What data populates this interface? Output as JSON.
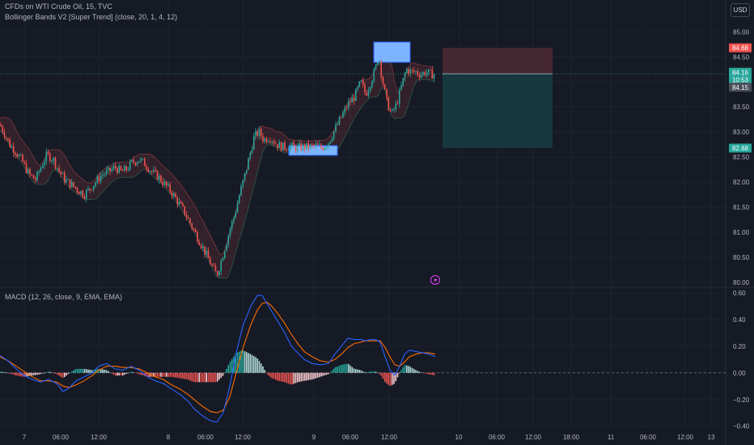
{
  "header": {
    "symbol_line": "CFDs on WTI Crude Oil, 15, TVC",
    "indicator_line": "Bollinger Bands V2 [Super Trend] (close, 20, 1, 4, 12)",
    "macd_line": "MACD (12, 26, close, 9, EMA, EMA)",
    "currency": "USD"
  },
  "colors": {
    "background": "#161a25",
    "grid": "#1f2330",
    "up_candle": "#26a69a",
    "down_candle": "#ef5350",
    "macd_line": "#2962ff",
    "signal_line": "#ff6d00",
    "hist_up": "#b2dfdb",
    "hist_up_strong": "#26a69a",
    "hist_down": "#ef5350",
    "hist_down_light": "#ffcdd2",
    "stop_zone": "#4a2a33",
    "target_zone": "#17393f",
    "highlight_box": "#7cb4ff"
  },
  "chart_data": [
    {
      "type": "candlestick",
      "title": "CFDs on WTI Crude Oil, 15, TVC",
      "ylim": [
        79.95,
        85.15
      ],
      "yticks": [
        "85.00",
        "84.50",
        "84.00",
        "83.50",
        "83.00",
        "82.50",
        "82.00",
        "81.50",
        "81.00",
        "80.50",
        "80.00"
      ],
      "xticks": [
        "7",
        "06:00",
        "12:00",
        "8",
        "06:00",
        "12:00",
        "9",
        "06:00",
        "12:00",
        "10",
        "06:00",
        "12:00",
        "18:00",
        "11",
        "06:00",
        "12:00",
        "13"
      ],
      "price_path": [
        [
          0,
          83.15
        ],
        [
          6,
          82.95
        ],
        [
          12,
          82.75
        ],
        [
          20,
          82.6
        ],
        [
          28,
          82.4
        ],
        [
          36,
          82.15
        ],
        [
          44,
          82.05
        ],
        [
          52,
          82.35
        ],
        [
          58,
          82.55
        ],
        [
          66,
          82.45
        ],
        [
          72,
          82.25
        ],
        [
          80,
          82.05
        ],
        [
          88,
          81.95
        ],
        [
          96,
          81.85
        ],
        [
          104,
          81.75
        ],
        [
          110,
          81.85
        ],
        [
          118,
          82.0
        ],
        [
          126,
          82.15
        ],
        [
          134,
          82.2
        ],
        [
          142,
          82.3
        ],
        [
          150,
          82.2
        ],
        [
          156,
          82.25
        ],
        [
          164,
          82.4
        ],
        [
          172,
          82.45
        ],
        [
          180,
          82.35
        ],
        [
          188,
          82.2
        ],
        [
          196,
          82.1
        ],
        [
          204,
          81.95
        ],
        [
          212,
          81.8
        ],
        [
          220,
          81.6
        ],
        [
          228,
          81.4
        ],
        [
          236,
          81.15
        ],
        [
          244,
          80.9
        ],
        [
          252,
          80.65
        ],
        [
          258,
          80.45
        ],
        [
          264,
          80.25
        ],
        [
          268,
          80.15
        ],
        [
          272,
          80.35
        ],
        [
          278,
          80.7
        ],
        [
          284,
          81.05
        ],
        [
          290,
          81.35
        ],
        [
          296,
          81.75
        ],
        [
          302,
          82.1
        ],
        [
          308,
          82.5
        ],
        [
          314,
          82.9
        ],
        [
          320,
          83.0
        ],
        [
          326,
          82.85
        ],
        [
          334,
          82.9
        ],
        [
          342,
          82.75
        ],
        [
          350,
          82.7
        ],
        [
          358,
          82.72
        ],
        [
          366,
          82.68
        ],
        [
          374,
          82.7
        ],
        [
          382,
          82.7
        ],
        [
          390,
          82.72
        ],
        [
          398,
          82.68
        ],
        [
          406,
          82.8
        ],
        [
          414,
          83.05
        ],
        [
          422,
          83.3
        ],
        [
          430,
          83.55
        ],
        [
          438,
          83.7
        ],
        [
          446,
          84.0
        ],
        [
          452,
          83.75
        ],
        [
          458,
          84.0
        ],
        [
          464,
          84.25
        ],
        [
          468,
          84.55
        ],
        [
          472,
          84.1
        ],
        [
          478,
          83.6
        ],
        [
          484,
          83.35
        ],
        [
          490,
          83.55
        ],
        [
          496,
          83.9
        ],
        [
          502,
          84.25
        ],
        [
          508,
          84.2
        ],
        [
          514,
          84.2
        ],
        [
          520,
          84.15
        ],
        [
          526,
          84.2
        ],
        [
          532,
          84.15
        ],
        [
          538,
          84.16
        ]
      ],
      "price_labels": [
        {
          "name": "stop-loss",
          "value": "84.68",
          "color": "#ef5350"
        },
        {
          "name": "last-price",
          "value": "84.16",
          "color": "#26a69a"
        },
        {
          "name": "countdown",
          "value": "10:53",
          "color": "#26a69a"
        },
        {
          "name": "prev-close",
          "value": "84.15",
          "color": "#4a4e5a"
        },
        {
          "name": "take-profit",
          "value": "82.68",
          "color": "#26a69a"
        }
      ],
      "position": {
        "entry": 84.16,
        "stop": 84.68,
        "target": 82.68
      }
    },
    {
      "type": "macd",
      "title": "MACD (12, 26, close, 9, EMA, EMA)",
      "ylim": [
        -0.42,
        0.63
      ],
      "yticks": [
        "0.60",
        "0.40",
        "0.20",
        "0.00",
        "−0.20",
        "−0.40"
      ],
      "macd": [
        [
          0,
          0.13
        ],
        [
          10,
          0.09
        ],
        [
          20,
          0.03
        ],
        [
          30,
          -0.02
        ],
        [
          40,
          -0.05
        ],
        [
          50,
          -0.07
        ],
        [
          60,
          -0.05
        ],
        [
          70,
          -0.08
        ],
        [
          78,
          -0.14
        ],
        [
          86,
          -0.11
        ],
        [
          94,
          -0.06
        ],
        [
          104,
          -0.03
        ],
        [
          114,
          0.0
        ],
        [
          122,
          0.05
        ],
        [
          132,
          0.07
        ],
        [
          142,
          0.03
        ],
        [
          152,
          0.02
        ],
        [
          162,
          0.05
        ],
        [
          172,
          0.02
        ],
        [
          182,
          -0.03
        ],
        [
          192,
          -0.06
        ],
        [
          202,
          -0.08
        ],
        [
          212,
          -0.12
        ],
        [
          222,
          -0.16
        ],
        [
          232,
          -0.21
        ],
        [
          240,
          -0.27
        ],
        [
          250,
          -0.32
        ],
        [
          260,
          -0.36
        ],
        [
          268,
          -0.37
        ],
        [
          276,
          -0.3
        ],
        [
          284,
          -0.1
        ],
        [
          292,
          0.15
        ],
        [
          300,
          0.35
        ],
        [
          310,
          0.5
        ],
        [
          318,
          0.58
        ],
        [
          324,
          0.58
        ],
        [
          330,
          0.52
        ],
        [
          336,
          0.46
        ],
        [
          344,
          0.38
        ],
        [
          352,
          0.3
        ],
        [
          360,
          0.2
        ],
        [
          368,
          0.15
        ],
        [
          376,
          0.1
        ],
        [
          386,
          0.07
        ],
        [
          396,
          0.06
        ],
        [
          406,
          0.07
        ],
        [
          414,
          0.14
        ],
        [
          422,
          0.2
        ],
        [
          430,
          0.26
        ],
        [
          438,
          0.25
        ],
        [
          446,
          0.25
        ],
        [
          452,
          0.24
        ],
        [
          458,
          0.25
        ],
        [
          464,
          0.25
        ],
        [
          470,
          0.23
        ],
        [
          476,
          0.12
        ],
        [
          482,
          0.02
        ],
        [
          488,
          -0.02
        ],
        [
          494,
          0.05
        ],
        [
          500,
          0.14
        ],
        [
          506,
          0.17
        ],
        [
          514,
          0.16
        ],
        [
          522,
          0.15
        ],
        [
          530,
          0.14
        ],
        [
          538,
          0.12
        ]
      ],
      "signal": [
        [
          0,
          0.12
        ],
        [
          10,
          0.09
        ],
        [
          20,
          0.05
        ],
        [
          30,
          0.01
        ],
        [
          40,
          -0.03
        ],
        [
          50,
          -0.06
        ],
        [
          60,
          -0.06
        ],
        [
          70,
          -0.07
        ],
        [
          78,
          -0.1
        ],
        [
          86,
          -0.11
        ],
        [
          94,
          -0.09
        ],
        [
          104,
          -0.06
        ],
        [
          114,
          -0.02
        ],
        [
          122,
          0.02
        ],
        [
          132,
          0.05
        ],
        [
          142,
          0.05
        ],
        [
          152,
          0.04
        ],
        [
          162,
          0.04
        ],
        [
          172,
          0.03
        ],
        [
          182,
          0.0
        ],
        [
          192,
          -0.03
        ],
        [
          202,
          -0.05
        ],
        [
          212,
          -0.09
        ],
        [
          222,
          -0.12
        ],
        [
          232,
          -0.16
        ],
        [
          240,
          -0.2
        ],
        [
          250,
          -0.25
        ],
        [
          260,
          -0.29
        ],
        [
          268,
          -0.3
        ],
        [
          276,
          -0.28
        ],
        [
          284,
          -0.18
        ],
        [
          292,
          0.0
        ],
        [
          300,
          0.18
        ],
        [
          310,
          0.36
        ],
        [
          318,
          0.47
        ],
        [
          324,
          0.52
        ],
        [
          330,
          0.53
        ],
        [
          336,
          0.5
        ],
        [
          344,
          0.44
        ],
        [
          352,
          0.37
        ],
        [
          360,
          0.29
        ],
        [
          368,
          0.22
        ],
        [
          376,
          0.16
        ],
        [
          386,
          0.12
        ],
        [
          396,
          0.09
        ],
        [
          406,
          0.08
        ],
        [
          414,
          0.1
        ],
        [
          422,
          0.14
        ],
        [
          430,
          0.19
        ],
        [
          438,
          0.22
        ],
        [
          446,
          0.23
        ],
        [
          452,
          0.24
        ],
        [
          458,
          0.24
        ],
        [
          464,
          0.24
        ],
        [
          470,
          0.24
        ],
        [
          476,
          0.19
        ],
        [
          482,
          0.12
        ],
        [
          488,
          0.06
        ],
        [
          494,
          0.05
        ],
        [
          500,
          0.08
        ],
        [
          506,
          0.12
        ],
        [
          514,
          0.14
        ],
        [
          522,
          0.15
        ],
        [
          530,
          0.15
        ],
        [
          538,
          0.14
        ]
      ]
    }
  ]
}
